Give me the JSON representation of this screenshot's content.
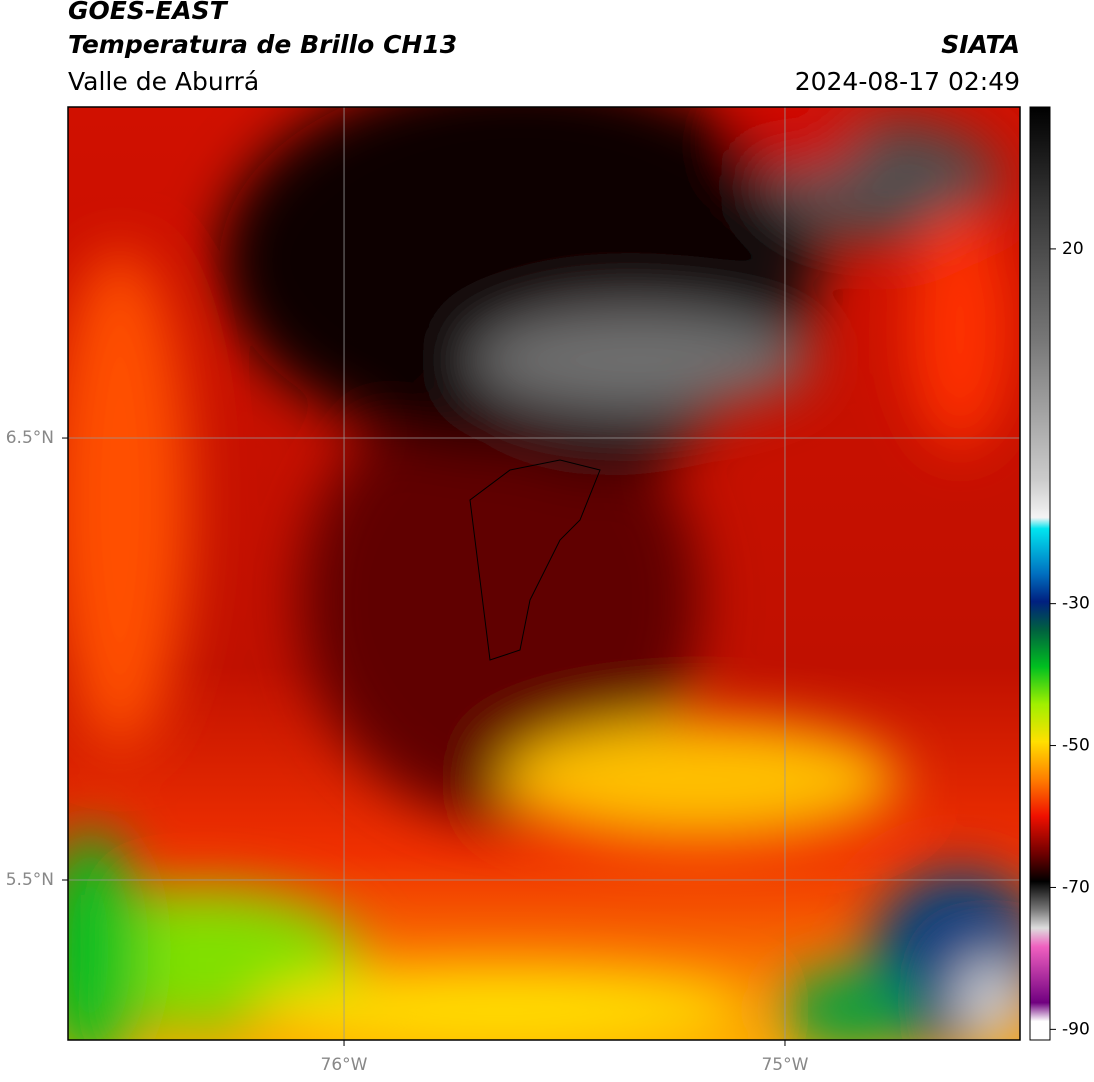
{
  "header": {
    "satellite": "GOES-EAST",
    "product": "Temperatura de Brillo CH13",
    "region": "Valle de Aburrá",
    "agency": "SIATA",
    "datetime": "2024-08-17 02:49"
  },
  "map": {
    "xlim": [
      -76.626,
      -74.467
    ],
    "ylim": [
      5.138,
      7.249
    ],
    "xticks": [
      {
        "value": -76,
        "label": "76°W"
      },
      {
        "value": -75,
        "label": "75°W"
      }
    ],
    "yticks": [
      {
        "value": 6.5,
        "label": "6.5°N"
      },
      {
        "value": 5.5,
        "label": "5.5°N"
      }
    ]
  },
  "colorbar": {
    "ylim": [
      -91.5,
      40
    ],
    "yticks": [
      20,
      -30,
      -50,
      -70,
      -90
    ]
  }
}
